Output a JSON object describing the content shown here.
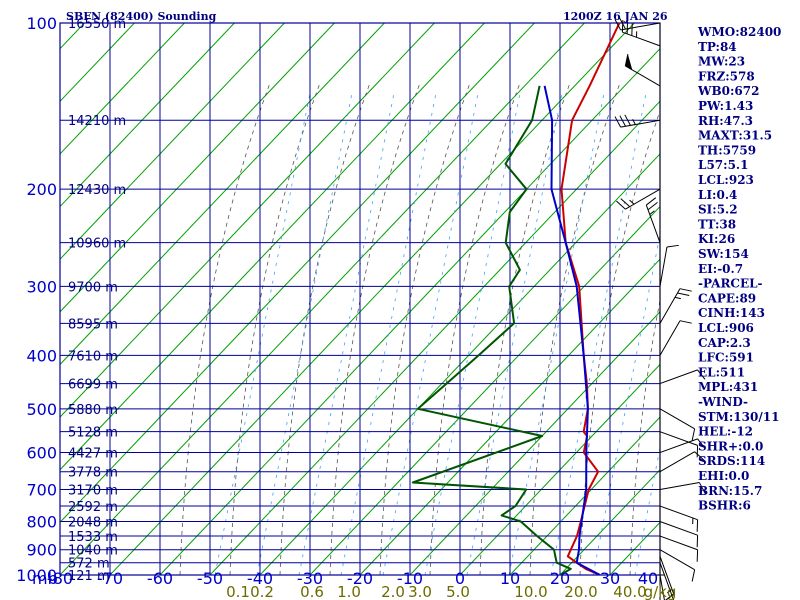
{
  "header": {
    "station_title": "SBFN (82400) Sounding",
    "valid_time": "1200Z 16 JAN 26"
  },
  "chart_data": {
    "type": "skew-t",
    "pressure_levels": [
      100,
      200,
      300,
      400,
      500,
      600,
      700,
      800,
      900,
      1000
    ],
    "pressure_unit_label": "mb",
    "temperature_ticks": [
      -80,
      -70,
      -60,
      -50,
      -40,
      -30,
      -20,
      -10,
      0,
      10,
      20,
      30,
      40
    ],
    "mixing_ratio_labels": [
      "0.1",
      "0.2",
      "0.6",
      "1.0",
      "2.0",
      "3.0",
      "5.0",
      "10.0",
      "20.0",
      "40.0",
      "g/kg"
    ],
    "heights": [
      {
        "p": 100,
        "label": "16550 m"
      },
      {
        "p": 150,
        "label": "14210 m"
      },
      {
        "p": 200,
        "label": "12430 m"
      },
      {
        "p": 250,
        "label": "10960 m"
      },
      {
        "p": 300,
        "label": "9700 m"
      },
      {
        "p": 350,
        "label": "8595 m"
      },
      {
        "p": 400,
        "label": "7610 m"
      },
      {
        "p": 450,
        "label": "6699 m"
      },
      {
        "p": 500,
        "label": "5880 m"
      },
      {
        "p": 550,
        "label": "5128 m"
      },
      {
        "p": 600,
        "label": "4427 m"
      },
      {
        "p": 650,
        "label": "3778 m"
      },
      {
        "p": 700,
        "label": "3170 m"
      },
      {
        "p": 750,
        "label": "2592 m"
      },
      {
        "p": 800,
        "label": "2048 m"
      },
      {
        "p": 850,
        "label": "1533 m"
      },
      {
        "p": 900,
        "label": "1040 m"
      },
      {
        "p": 950,
        "label": "572 m"
      },
      {
        "p": 1000,
        "label": "121 m"
      }
    ],
    "temperature_profile": [
      {
        "p": 1000,
        "t": 28
      },
      {
        "p": 975,
        "t": 24
      },
      {
        "p": 950,
        "t": 21
      },
      {
        "p": 925,
        "t": 18
      },
      {
        "p": 850,
        "t": 16
      },
      {
        "p": 800,
        "t": 14
      },
      {
        "p": 700,
        "t": 9.5
      },
      {
        "p": 650,
        "t": 8
      },
      {
        "p": 600,
        "t": 1.5
      },
      {
        "p": 560,
        "t": -1
      },
      {
        "p": 550,
        "t": -2.5
      },
      {
        "p": 500,
        "t": -6
      },
      {
        "p": 450,
        "t": -11
      },
      {
        "p": 400,
        "t": -17
      },
      {
        "p": 300,
        "t": -31
      },
      {
        "p": 250,
        "t": -42
      },
      {
        "p": 200,
        "t": -53
      },
      {
        "p": 150,
        "t": -64
      },
      {
        "p": 130,
        "t": -67
      },
      {
        "p": 100,
        "t": -73
      }
    ],
    "dewpoint_profile": [
      {
        "p": 1000,
        "t": 20
      },
      {
        "p": 975,
        "t": 21
      },
      {
        "p": 950,
        "t": 17
      },
      {
        "p": 900,
        "t": 14
      },
      {
        "p": 850,
        "t": 8
      },
      {
        "p": 800,
        "t": 2
      },
      {
        "p": 780,
        "t": -3
      },
      {
        "p": 750,
        "t": -2
      },
      {
        "p": 700,
        "t": -3
      },
      {
        "p": 680,
        "t": -27
      },
      {
        "p": 560,
        "t": -10
      },
      {
        "p": 500,
        "t": -40
      },
      {
        "p": 400,
        "t": -38
      },
      {
        "p": 350,
        "t": -37
      },
      {
        "p": 300,
        "t": -45
      },
      {
        "p": 280,
        "t": -46
      },
      {
        "p": 250,
        "t": -54
      },
      {
        "p": 220,
        "t": -59
      },
      {
        "p": 200,
        "t": -60
      },
      {
        "p": 180,
        "t": -69
      },
      {
        "p": 150,
        "t": -72
      },
      {
        "p": 130,
        "t": -77
      }
    ],
    "parcel_profile": [
      {
        "p": 1000,
        "t": 28
      },
      {
        "p": 950,
        "t": 21
      },
      {
        "p": 900,
        "t": 19
      },
      {
        "p": 850,
        "t": 16.5
      },
      {
        "p": 700,
        "t": 9
      },
      {
        "p": 600,
        "t": 2
      },
      {
        "p": 500,
        "t": -6
      },
      {
        "p": 400,
        "t": -17
      },
      {
        "p": 300,
        "t": -31.5
      },
      {
        "p": 250,
        "t": -42
      },
      {
        "p": 200,
        "t": -55
      },
      {
        "p": 150,
        "t": -68
      },
      {
        "p": 130,
        "t": -76
      }
    ],
    "winds": [
      {
        "p": 1000,
        "dir": 170,
        "spd": 10
      },
      {
        "p": 975,
        "dir": 180,
        "spd": 10
      },
      {
        "p": 950,
        "dir": 160,
        "spd": 5
      },
      {
        "p": 925,
        "dir": 160,
        "spd": 5
      },
      {
        "p": 900,
        "dir": 120,
        "spd": 10
      },
      {
        "p": 850,
        "dir": 110,
        "spd": 10
      },
      {
        "p": 800,
        "dir": 110,
        "spd": 10
      },
      {
        "p": 750,
        "dir": 110,
        "spd": 5
      },
      {
        "p": 700,
        "dir": 80,
        "spd": 10
      },
      {
        "p": 650,
        "dir": 60,
        "spd": 10
      },
      {
        "p": 600,
        "dir": 70,
        "spd": 10
      },
      {
        "p": 550,
        "dir": 110,
        "spd": 10
      },
      {
        "p": 500,
        "dir": 120,
        "spd": 10
      },
      {
        "p": 450,
        "dir": 70,
        "spd": 10
      },
      {
        "p": 400,
        "dir": 30,
        "spd": 10
      },
      {
        "p": 350,
        "dir": 30,
        "spd": 15
      },
      {
        "p": 300,
        "dir": 10,
        "spd": 10
      },
      {
        "p": 250,
        "dir": 340,
        "spd": 15
      },
      {
        "p": 200,
        "dir": 240,
        "spd": 15
      },
      {
        "p": 150,
        "dir": 260,
        "spd": 25
      },
      {
        "p": 130,
        "dir": 300,
        "spd": 60
      },
      {
        "p": 110,
        "dir": 290,
        "spd": 25
      },
      {
        "p": 100,
        "dir": 260,
        "spd": 20
      }
    ],
    "colors": {
      "grid": "#000099",
      "dry_adiabat": "#00a000",
      "moist_adiabat": "#555555",
      "mixing_ratio": "#3fa0ff",
      "temperature": "#cc0000",
      "dewpoint": "#005500",
      "parcel": "#0000cc",
      "wind": "#000000"
    }
  },
  "indices": [
    "WMO:82400",
    "TP:84",
    "MW:23",
    "FRZ:578",
    "WB0:672",
    "PW:1.43",
    "RH:47.3",
    "MAXT:31.5",
    "TH:5759",
    "L57:5.1",
    "LCL:923",
    "LI:0.4",
    "SI:5.2",
    "TT:38",
    "KI:26",
    "SW:154",
    "EI:-0.7",
    "-PARCEL-",
    "CAPE:89",
    "CINH:143",
    "LCL:906",
    "CAP:2.3",
    "LFC:591",
    "EL:511",
    "MPL:431",
    "-WIND-",
    "STM:130/11",
    "HEL:-12",
    "SHR+:0.0",
    "SRDS:114",
    "EHI:0.0",
    "BRN:15.7",
    "BSHR:6"
  ]
}
